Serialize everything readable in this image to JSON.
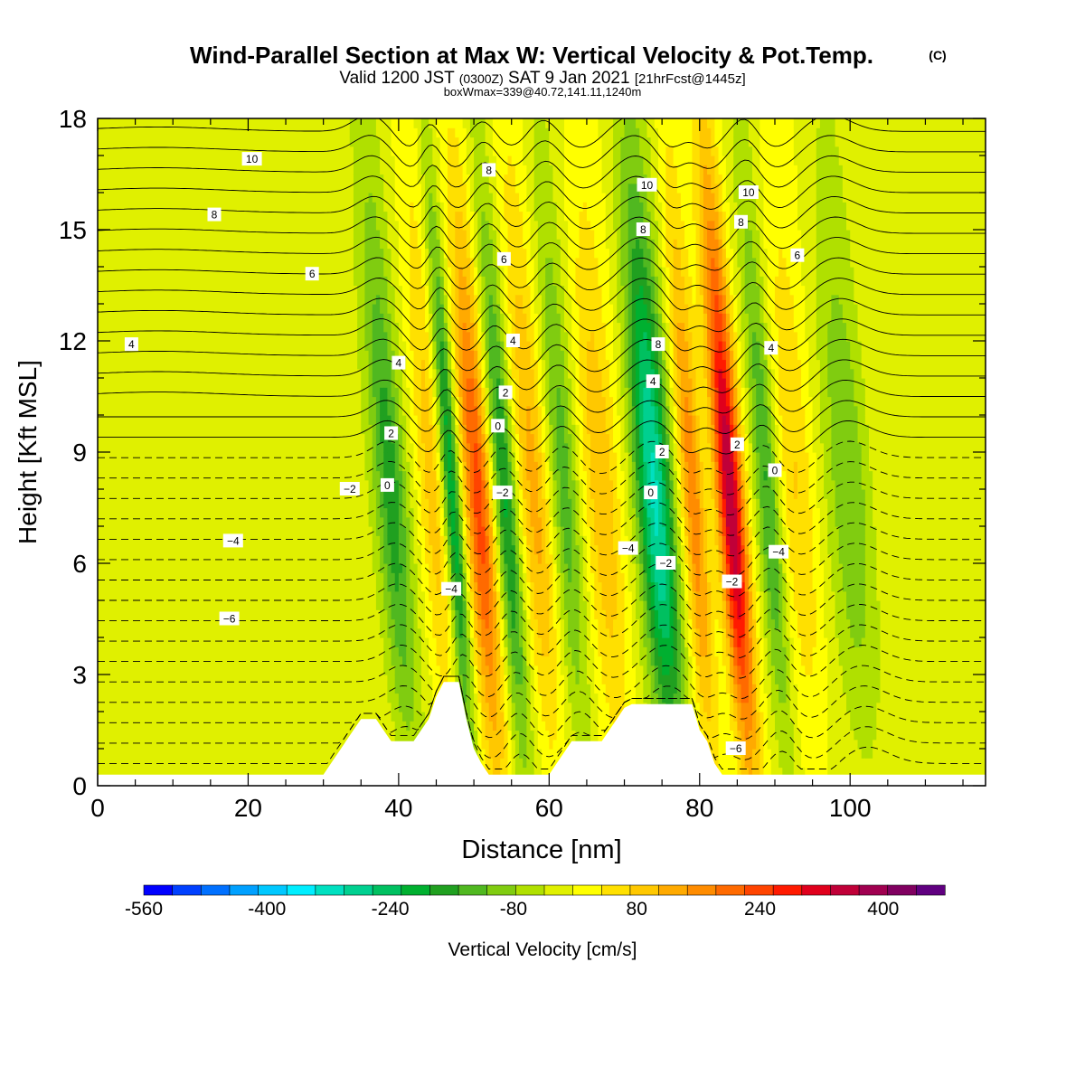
{
  "figure": {
    "title_main": "Wind-Parallel Section at Max W: Vertical Velocity & Pot.Temp.",
    "title_mark": "(C)",
    "valid_prefix": "Valid 1200 JST",
    "valid_utc": "(0300Z)",
    "valid_date": "SAT 9 Jan 2021",
    "forecast": "[21hrFcst@1445z]",
    "box_info": "boxWmax=339@40.72,141.11,1240m"
  },
  "chart_data": {
    "type": "heatmap",
    "title": "Wind-Parallel Section at Max W: Vertical Velocity & Pot.Temp.",
    "xlabel": "Distance [nm]",
    "ylabel": "Height [Kft MSL]",
    "xlim": [
      0,
      118
    ],
    "ylim": [
      0,
      18
    ],
    "x_ticks": [
      0,
      20,
      40,
      60,
      80,
      100
    ],
    "y_ticks": [
      0,
      3,
      6,
      9,
      12,
      15,
      18
    ],
    "colorbar": {
      "label": "Vertical Velocity [cm/s]",
      "min": -560,
      "max": 480,
      "step": 40,
      "tick_values": [
        -560,
        -400,
        -240,
        -80,
        80,
        240,
        400
      ],
      "colors": [
        "#0000ff",
        "#0040ff",
        "#0070ff",
        "#00a0ff",
        "#00c8ff",
        "#00eeff",
        "#00e0c0",
        "#00d090",
        "#00c060",
        "#00b030",
        "#20a020",
        "#50b820",
        "#80cc10",
        "#b0e000",
        "#e0f000",
        "#ffff00",
        "#ffe000",
        "#ffc800",
        "#ffaa00",
        "#ff8c00",
        "#ff6a00",
        "#ff4400",
        "#ff1a00",
        "#e0001c",
        "#c00038",
        "#a00050",
        "#800060",
        "#600080"
      ]
    },
    "wind_cells": [
      {
        "x": 39,
        "w": 2.2,
        "amp": -190
      },
      {
        "x": 44.5,
        "w": 1.8,
        "amp": 120
      },
      {
        "x": 47,
        "w": 1.2,
        "amp": -240
      },
      {
        "x": 50.5,
        "w": 2.0,
        "amp": 280
      },
      {
        "x": 54,
        "w": 1.7,
        "amp": -230
      },
      {
        "x": 58,
        "w": 2.3,
        "amp": 160
      },
      {
        "x": 62,
        "w": 2.0,
        "amp": -140
      },
      {
        "x": 67,
        "w": 2.5,
        "amp": 120
      },
      {
        "x": 74,
        "w": 2.4,
        "amp": -330
      },
      {
        "x": 79,
        "w": 1.6,
        "amp": 200
      },
      {
        "x": 84,
        "w": 1.8,
        "amp": 440
      },
      {
        "x": 89,
        "w": 1.6,
        "amp": -170
      },
      {
        "x": 93,
        "w": 2.5,
        "amp": 90
      },
      {
        "x": 100,
        "w": 3.0,
        "amp": -110
      }
    ],
    "terrain": [
      [
        0,
        0.3
      ],
      [
        30,
        0.3
      ],
      [
        31,
        0.6
      ],
      [
        32,
        0.9
      ],
      [
        33,
        1.2
      ],
      [
        34,
        1.5
      ],
      [
        35,
        1.8
      ],
      [
        37,
        1.8
      ],
      [
        38,
        1.5
      ],
      [
        39,
        1.2
      ],
      [
        42,
        1.2
      ],
      [
        43,
        1.5
      ],
      [
        44,
        1.8
      ],
      [
        45,
        2.4
      ],
      [
        46,
        2.8
      ],
      [
        48,
        2.8
      ],
      [
        49,
        1.8
      ],
      [
        50,
        1.0
      ],
      [
        51,
        0.6
      ],
      [
        52,
        0.3
      ],
      [
        60,
        0.3
      ],
      [
        61,
        0.6
      ],
      [
        62,
        0.9
      ],
      [
        63,
        1.2
      ],
      [
        67,
        1.2
      ],
      [
        68,
        1.5
      ],
      [
        69,
        1.8
      ],
      [
        70,
        2.1
      ],
      [
        71,
        2.2
      ],
      [
        79,
        2.2
      ],
      [
        80,
        1.5
      ],
      [
        81,
        1.2
      ],
      [
        82,
        0.6
      ],
      [
        83,
        0.3
      ],
      [
        118,
        0.3
      ]
    ],
    "theta_labels": [
      {
        "text": "10",
        "x": 20.5,
        "y": 16.9
      },
      {
        "text": "8",
        "x": 15.5,
        "y": 15.4
      },
      {
        "text": "6",
        "x": 28.5,
        "y": 13.8
      },
      {
        "text": "4",
        "x": 4.5,
        "y": 11.9
      },
      {
        "text": "8",
        "x": 52,
        "y": 16.6
      },
      {
        "text": "6",
        "x": 54,
        "y": 14.2
      },
      {
        "text": "4",
        "x": 55.2,
        "y": 12.0
      },
      {
        "text": "2",
        "x": 54.2,
        "y": 10.6
      },
      {
        "text": "0",
        "x": 53.2,
        "y": 9.7
      },
      {
        "text": "−2",
        "x": 53.8,
        "y": 7.9
      },
      {
        "text": "4",
        "x": 40,
        "y": 11.4
      },
      {
        "text": "2",
        "x": 39,
        "y": 9.5
      },
      {
        "text": "0",
        "x": 38.5,
        "y": 8.1
      },
      {
        "text": "−2",
        "x": 33.5,
        "y": 8.0
      },
      {
        "text": "−4",
        "x": 18,
        "y": 6.6
      },
      {
        "text": "−6",
        "x": 17.5,
        "y": 4.5
      },
      {
        "text": "−4",
        "x": 47,
        "y": 5.3
      },
      {
        "text": "10",
        "x": 73,
        "y": 16.2
      },
      {
        "text": "8",
        "x": 72.5,
        "y": 15.0
      },
      {
        "text": "8",
        "x": 74.5,
        "y": 11.9
      },
      {
        "text": "4",
        "x": 73.8,
        "y": 10.9
      },
      {
        "text": "2",
        "x": 75,
        "y": 9.0
      },
      {
        "text": "0",
        "x": 73.5,
        "y": 7.9
      },
      {
        "text": "−2",
        "x": 75.5,
        "y": 6.0
      },
      {
        "text": "−4",
        "x": 70.5,
        "y": 6.4
      },
      {
        "text": "10",
        "x": 86.5,
        "y": 16.0
      },
      {
        "text": "8",
        "x": 85.5,
        "y": 15.2
      },
      {
        "text": "6",
        "x": 93,
        "y": 14.3
      },
      {
        "text": "4",
        "x": 89.5,
        "y": 11.8
      },
      {
        "text": "2",
        "x": 85,
        "y": 9.2
      },
      {
        "text": "0",
        "x": 90,
        "y": 8.5
      },
      {
        "text": "−2",
        "x": 84.3,
        "y": 5.5
      },
      {
        "text": "−4",
        "x": 90.5,
        "y": 6.3
      },
      {
        "text": "−6",
        "x": 84.8,
        "y": 1.0
      }
    ]
  }
}
